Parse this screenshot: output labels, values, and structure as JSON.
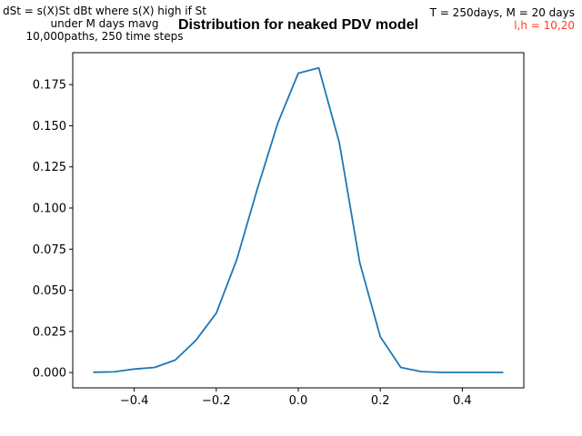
{
  "annotations": {
    "left_lines": [
      "dSt = s(X)St dBt where s(X) high if St",
      "under M days mavg",
      "10,000paths, 250 time steps"
    ],
    "right_line": "T = 250days, M = 20 days",
    "right_red": "l,h = 10,20"
  },
  "chart_data": {
    "type": "line",
    "title": "Distribution for neaked PDV model",
    "xlabel": "",
    "ylabel": "",
    "xlim": [
      -0.55,
      0.55
    ],
    "ylim": [
      -0.0093,
      0.1944
    ],
    "x_ticks": [
      -0.4,
      -0.2,
      0.0,
      0.2,
      0.4
    ],
    "x_tick_labels": [
      "−0.4",
      "−0.2",
      "0.0",
      "0.2",
      "0.4"
    ],
    "y_ticks": [
      0.0,
      0.025,
      0.05,
      0.075,
      0.1,
      0.125,
      0.15,
      0.175
    ],
    "y_tick_labels": [
      "0.000",
      "0.025",
      "0.050",
      "0.075",
      "0.100",
      "0.125",
      "0.150",
      "0.175"
    ],
    "grid": false,
    "series": [
      {
        "color": "#1f77b4",
        "x": [
          -0.5,
          -0.45,
          -0.4,
          -0.35,
          -0.3,
          -0.25,
          -0.2,
          -0.15,
          -0.1,
          -0.05,
          0.0,
          0.05,
          0.1,
          0.15,
          0.2,
          0.25,
          0.3,
          0.35,
          0.4,
          0.45,
          0.5
        ],
        "y": [
          0.0002,
          0.0004,
          0.0021,
          0.0031,
          0.0076,
          0.0195,
          0.0361,
          0.0687,
          0.1115,
          0.1516,
          0.1819,
          0.1852,
          0.1398,
          0.0668,
          0.0218,
          0.0031,
          0.0006,
          0.0001,
          0.0001,
          0.0001,
          0.0001
        ]
      }
    ]
  }
}
